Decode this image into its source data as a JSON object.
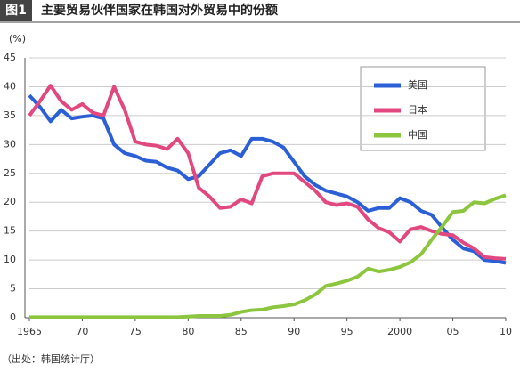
{
  "header": {
    "badge": "图1",
    "title": "主要贸易伙伴国家在韩国对外贸易中的份额"
  },
  "chart_data": {
    "type": "line",
    "ylabel": "(%)",
    "x": [
      1965,
      1966,
      1967,
      1968,
      1969,
      1970,
      1971,
      1972,
      1973,
      1974,
      1975,
      1976,
      1977,
      1978,
      1979,
      1980,
      1981,
      1982,
      1983,
      1984,
      1985,
      1986,
      1987,
      1988,
      1989,
      1990,
      1991,
      1992,
      1993,
      1994,
      1995,
      1996,
      1997,
      1998,
      1999,
      2000,
      2001,
      2002,
      2003,
      2004,
      2005,
      2006,
      2007,
      2008,
      2009,
      2010
    ],
    "xlim": [
      1965,
      2010
    ],
    "xticks": [
      1965,
      {
        "value": 1970,
        "label": "70"
      },
      {
        "value": 1975,
        "label": "75"
      },
      {
        "value": 1980,
        "label": "80"
      },
      {
        "value": 1985,
        "label": "85"
      },
      {
        "value": 1990,
        "label": "90"
      },
      {
        "value": 1995,
        "label": "95"
      },
      2000,
      {
        "value": 2005,
        "label": "05"
      },
      {
        "value": 2010,
        "label": "10"
      }
    ],
    "ylim": [
      0,
      45
    ],
    "yticks": [
      0,
      5,
      10,
      15,
      20,
      25,
      30,
      35,
      40,
      45
    ],
    "grid": true,
    "legend": "upper right",
    "series": [
      {
        "name": "美国",
        "color": "#2b5fd6",
        "values": [
          38.5,
          36.5,
          34,
          36,
          34.5,
          34.8,
          35,
          34.5,
          30,
          28.5,
          28,
          27.2,
          27,
          26,
          25.5,
          24,
          24.5,
          26.5,
          28.5,
          29,
          28,
          31,
          31,
          30.5,
          29.5,
          27,
          24.5,
          23,
          22,
          21.5,
          21,
          20,
          18.5,
          19,
          19,
          20.7,
          20,
          18.5,
          17.8,
          15.6,
          13.5,
          12,
          11.5,
          10,
          9.8,
          9.5
        ]
      },
      {
        "name": "日本",
        "color": "#e2487f",
        "values": [
          35,
          37.5,
          40.2,
          37.5,
          36,
          37,
          35.5,
          35,
          40,
          36,
          30.5,
          30,
          29.8,
          29.2,
          31,
          28.5,
          22.5,
          21,
          19,
          19.2,
          20.5,
          19.8,
          24.5,
          25,
          25,
          25,
          23.5,
          22,
          20,
          19.5,
          19.8,
          19.2,
          17,
          15.5,
          14.8,
          13.2,
          15.3,
          15.7,
          15,
          14.5,
          14.3,
          13,
          12,
          10.5,
          10.3,
          10.2
        ]
      },
      {
        "name": "中国",
        "color": "#8cc63f",
        "values": [
          0.1,
          0.1,
          0.1,
          0.1,
          0.1,
          0.1,
          0.1,
          0.1,
          0.1,
          0.1,
          0.1,
          0.1,
          0.1,
          0.1,
          0.1,
          0.2,
          0.3,
          0.3,
          0.3,
          0.5,
          1,
          1.3,
          1.4,
          1.8,
          2,
          2.3,
          3,
          4,
          5.5,
          5.9,
          6.4,
          7.1,
          8.5,
          8,
          8.3,
          8.8,
          9.6,
          11,
          13.5,
          15.8,
          18.3,
          18.5,
          20,
          19.8,
          20.6,
          21.2
        ]
      }
    ]
  },
  "footer": {
    "source": "（出处：韩国统计厅）"
  }
}
